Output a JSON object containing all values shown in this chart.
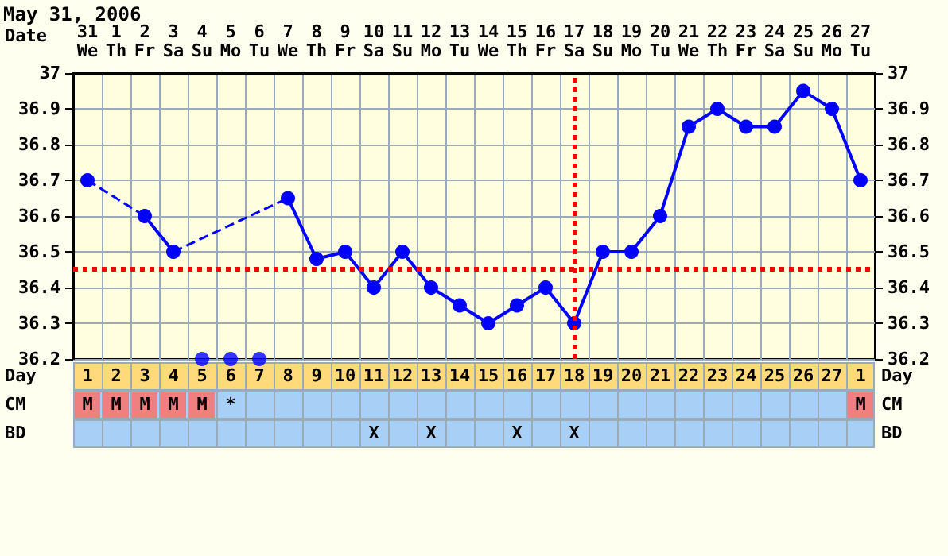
{
  "chart_data": {
    "type": "line",
    "title": "May 31, 2006",
    "categories": [
      "31\nWe",
      "1\nTh",
      "2\nFr",
      "3\nSa",
      "4\nSu",
      "5\nMo",
      "6\nTu",
      "7\nWe",
      "8\nTh",
      "9\nFr",
      "10\nSa",
      "11\nSu",
      "12\nMo",
      "13\nTu",
      "14\nWe",
      "15\nTh",
      "16\nFr",
      "17\nSa",
      "18\nSu",
      "19\nMo",
      "20\nTu",
      "21\nWe",
      "22\nTh",
      "23\nFr",
      "24\nSa",
      "25\nSu",
      "26\nMo",
      "27\nTu"
    ],
    "series": [
      {
        "color": "#0000ff",
        "values": [
          36.7,
          null,
          36.6,
          36.5,
          null,
          null,
          null,
          36.65,
          36.48,
          36.5,
          36.4,
          36.5,
          36.4,
          36.35,
          36.3,
          36.35,
          36.4,
          36.3,
          36.5,
          36.5,
          36.6,
          36.85,
          36.9,
          36.85,
          36.85,
          36.95,
          36.9,
          36.7
        ]
      },
      {
        "type": "scatter",
        "color": "#0000ff",
        "values": [
          null,
          null,
          null,
          null,
          36.2,
          36.2,
          36.2,
          null,
          null,
          null,
          null,
          null,
          null,
          null,
          null,
          null,
          null,
          null,
          null,
          null,
          null,
          null,
          null,
          null,
          null,
          null,
          null,
          null
        ]
      }
    ],
    "ylim": [
      36.2,
      37.0
    ],
    "yticks": [
      36.2,
      36.3,
      36.4,
      36.5,
      36.6,
      36.7,
      36.8,
      36.9,
      37.0
    ],
    "y2lim": [
      36.2,
      37.0
    ],
    "y2ticks": [
      36.2,
      36.3,
      36.4,
      36.5,
      36.6,
      36.7,
      36.8,
      36.9,
      37.0
    ],
    "grid": true,
    "marker": "circle",
    "ref_lines": [
      {
        "axis": "y",
        "value": 36.45,
        "color": "#ff0000",
        "line_style": "dotted"
      },
      {
        "axis": "x",
        "value": "17\nSa",
        "color": "#ff0000",
        "line_style": "dotted"
      }
    ],
    "annotations": [
      "Date",
      "Day",
      "1 2 3 4 5 6 7 8 9 10 11 12 13 14 15 16 17 18 19 20 21 22 23 24 25 26 27 1",
      "CM",
      "M",
      "M",
      "M",
      "M",
      "M",
      "*",
      "M",
      "BD",
      "X",
      "X",
      "X",
      "X"
    ]
  }
}
